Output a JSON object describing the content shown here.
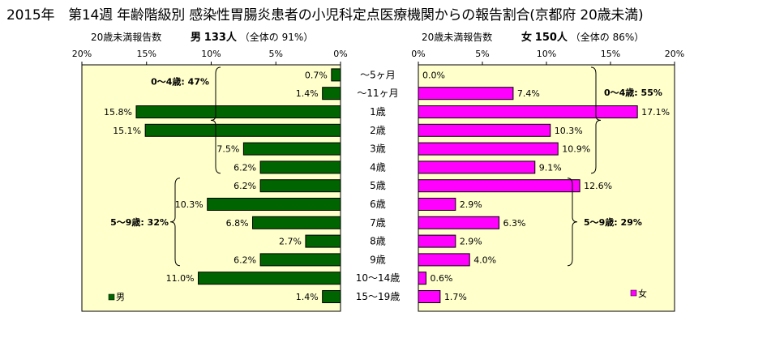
{
  "title": "2015年　第14週 年齢階級別 感染性胃腸炎患者の小児科定点医療機関からの報告割合(京都府 20歳未満)",
  "header_left": {
    "label": "20歳未満報告数",
    "sex": "男",
    "count": "133人",
    "share_prefix": "（全体の",
    "share": "91%）"
  },
  "header_right": {
    "label": "20歳未満報告数",
    "sex": "女",
    "count": "150人",
    "share_prefix": "（全体の",
    "share": "86%）"
  },
  "colors": {
    "male": "#006400",
    "female": "#ff00ff",
    "plot_bg": "#ffffcc"
  },
  "chart_data": {
    "type": "bar",
    "orientation": "horizontal",
    "categories": [
      "～5ヶ月",
      "～11ヶ月",
      "1歳",
      "2歳",
      "3歳",
      "4歳",
      "5歳",
      "6歳",
      "7歳",
      "8歳",
      "9歳",
      "10～14歳",
      "15～19歳"
    ],
    "xlim": [
      0,
      20
    ],
    "ticks": [
      "20%",
      "15%",
      "10%",
      "5%",
      "0%"
    ],
    "ticks_right": [
      "0%",
      "5%",
      "10%",
      "15%",
      "20%"
    ],
    "series": [
      {
        "name": "男",
        "values": [
          0.7,
          1.4,
          15.8,
          15.1,
          7.5,
          6.2,
          6.2,
          10.3,
          6.8,
          2.7,
          6.2,
          11.0,
          1.4
        ],
        "labels": [
          "0.7%",
          "1.4%",
          "15.8%",
          "15.1%",
          "7.5%",
          "6.2%",
          "6.2%",
          "10.3%",
          "6.8%",
          "2.7%",
          "6.2%",
          "11.0%",
          "1.4%"
        ]
      },
      {
        "name": "女",
        "values": [
          0.0,
          7.4,
          17.1,
          10.3,
          10.9,
          9.1,
          12.6,
          2.9,
          6.3,
          2.9,
          4.0,
          0.6,
          1.7
        ],
        "labels": [
          "0.0%",
          "7.4%",
          "17.1%",
          "10.3%",
          "10.9%",
          "9.1%",
          "12.6%",
          "2.9%",
          "6.3%",
          "2.9%",
          "4.0%",
          "0.6%",
          "1.7%"
        ]
      }
    ],
    "annotations": {
      "male_0_4": "0～4歳: 47%",
      "male_5_9": "5～9歳: 32%",
      "female_0_4": "0～4歳: 55%",
      "female_5_9": "5～9歳: 29%"
    },
    "legend": {
      "male": "男",
      "female": "女"
    },
    "grid": false
  }
}
